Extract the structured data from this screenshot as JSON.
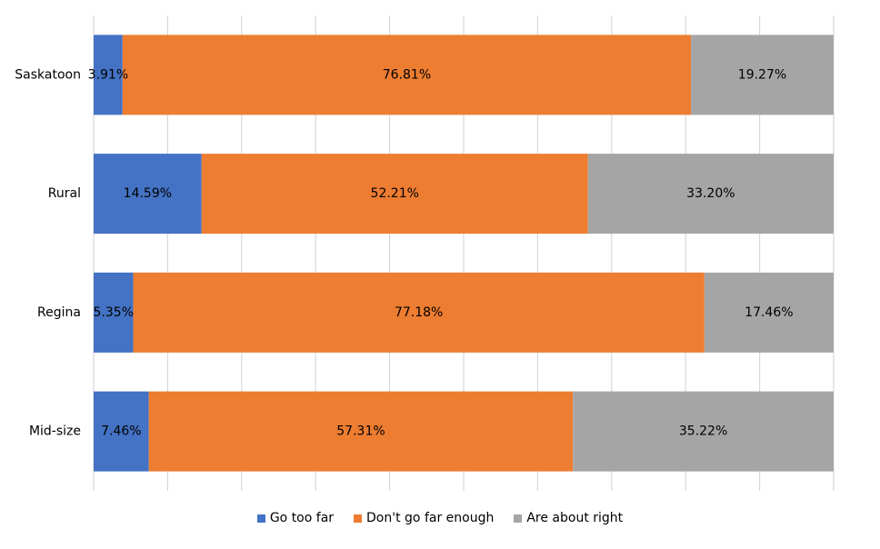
{
  "chart_data": {
    "type": "bar",
    "orientation": "horizontal",
    "stacked": true,
    "percent_stacked": true,
    "categories": [
      "Saskatoon",
      "Rural",
      "Regina",
      "Mid-size"
    ],
    "series": [
      {
        "name": "Go too far",
        "color": "#4472C4",
        "values": [
          3.91,
          14.59,
          5.35,
          7.46
        ],
        "labels": [
          "3.91%",
          "14.59%",
          "5.35%",
          "7.46%"
        ]
      },
      {
        "name": "Don't go far enough",
        "color": "#ED7D31",
        "values": [
          76.81,
          52.21,
          77.18,
          57.31
        ],
        "labels": [
          "76.81%",
          "52.21%",
          "77.18%",
          "57.31%"
        ]
      },
      {
        "name": "Are about right",
        "color": "#A5A5A5",
        "values": [
          19.27,
          33.2,
          17.46,
          35.22
        ],
        "labels": [
          "19.27%",
          "33.20%",
          "17.46%",
          "35.22%"
        ]
      }
    ],
    "xlim": [
      0,
      100
    ],
    "grid": true,
    "legend": "bottom"
  }
}
